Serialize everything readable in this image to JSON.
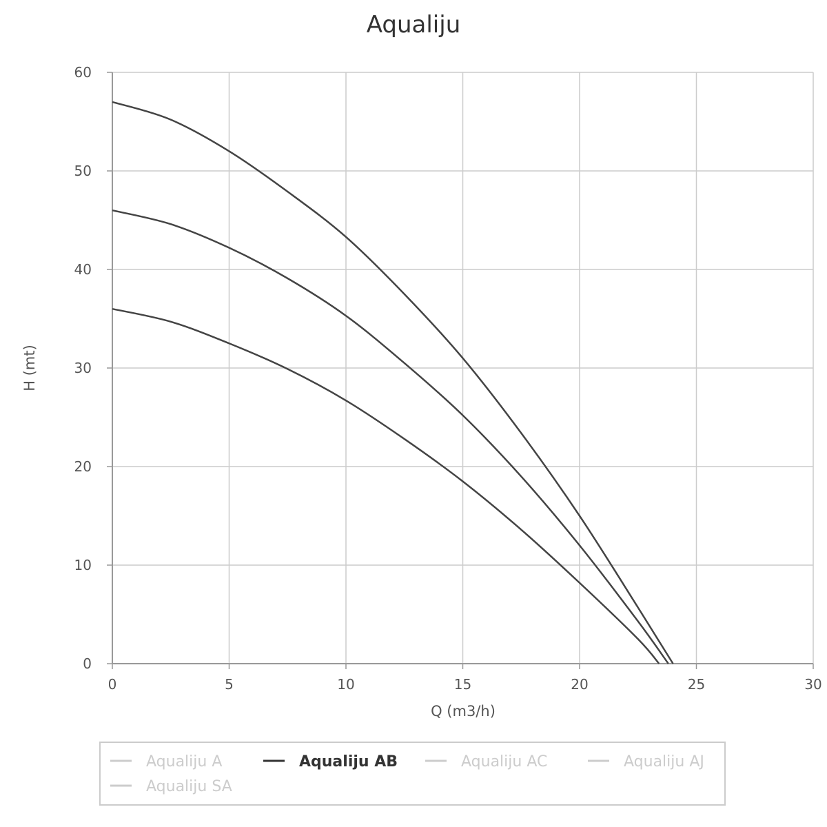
{
  "chart_data": {
    "type": "line",
    "title": "Aqualiju",
    "xlabel": "Q (m3/h)",
    "ylabel": "H (mt)",
    "xlim": [
      0,
      30
    ],
    "ylim": [
      0,
      60
    ],
    "xticks": [
      "0",
      "5",
      "10",
      "15",
      "20",
      "25",
      "30"
    ],
    "yticks": [
      "0",
      "10",
      "20",
      "30",
      "40",
      "50",
      "60"
    ],
    "grid": true,
    "curves": [
      {
        "x": [
          0,
          2.5,
          5,
          7.5,
          10,
          12.5,
          15,
          17.5,
          20,
          22.5,
          24
        ],
        "y": [
          57,
          55.2,
          52,
          47.9,
          43.3,
          37.5,
          31,
          23.4,
          15,
          5.7,
          0
        ]
      },
      {
        "x": [
          0,
          2.5,
          5,
          7.5,
          10,
          12.5,
          15,
          17.5,
          20,
          22.5,
          23.8
        ],
        "y": [
          46,
          44.6,
          42.2,
          39.1,
          35.3,
          30.5,
          25.2,
          19,
          12,
          4.3,
          0
        ]
      },
      {
        "x": [
          0,
          2.5,
          5,
          7.5,
          10,
          12.5,
          15,
          17.5,
          20,
          22.5,
          23.4
        ],
        "y": [
          36,
          34.7,
          32.5,
          29.9,
          26.7,
          22.8,
          18.5,
          13.6,
          8.2,
          2.5,
          0
        ]
      }
    ],
    "legend": {
      "placement": "bottom",
      "items": [
        {
          "label": "Aqualiju A",
          "active": false
        },
        {
          "label": "Aqualiju AB",
          "active": true
        },
        {
          "label": "Aqualiju AC",
          "active": false
        },
        {
          "label": "Aqualiju AJ",
          "active": false
        },
        {
          "label": "Aqualiju SA",
          "active": false
        }
      ]
    },
    "colors": {
      "line": "#444444",
      "grid": "#cccccc",
      "axis": "#999999",
      "legend_active": "#333333",
      "legend_inactive": "#cccccc",
      "legend_border": "#cccccc"
    }
  }
}
